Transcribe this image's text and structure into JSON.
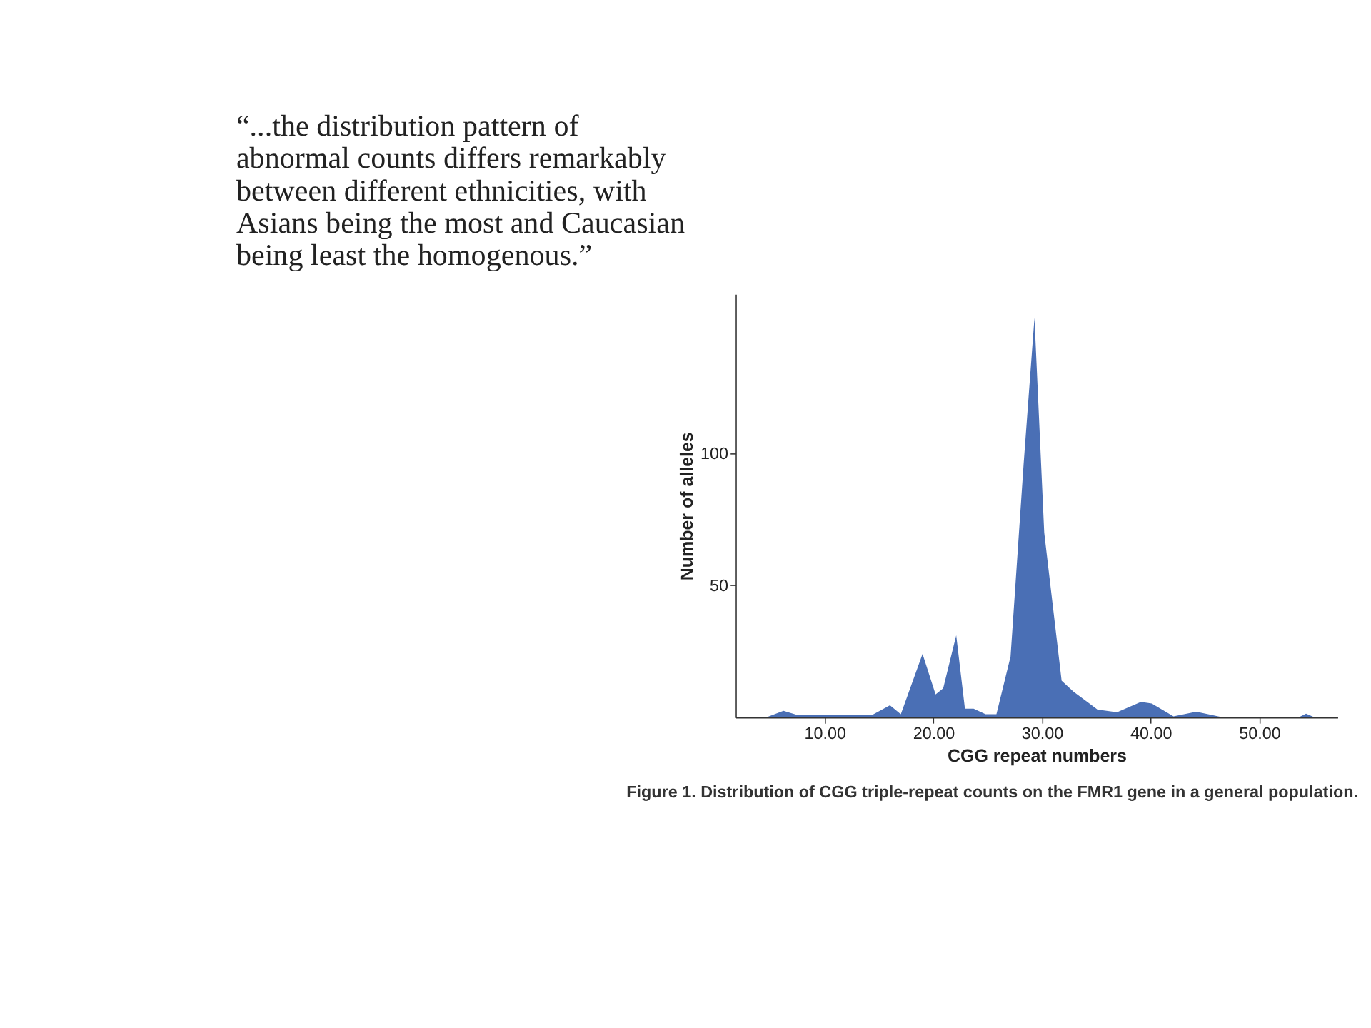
{
  "chart_data": {
    "type": "area",
    "title": "“...the distribution pattern of\nabnormal counts differs remarkably\nbetween different ethnicities, with\nAsians being the most and Caucasian\nbeing least the homogenous.”",
    "xlabel": "CGG repeat numbers",
    "ylabel": "Number of alleles",
    "x": [
      4.6,
      6.2,
      7.4,
      14.4,
      16.0,
      17.0,
      19.0,
      20.2,
      20.9,
      22.1,
      22.9,
      23.7,
      24.8,
      25.8,
      27.1,
      28.3,
      29.3,
      30.2,
      31.8,
      32.9,
      35.1,
      36.9,
      39.1,
      40.1,
      42.1,
      44.2,
      46.6,
      53.6,
      54.3,
      55.1
    ],
    "series": [
      {
        "color": "#4a6fb5",
        "values": [
          0,
          2.5,
          1,
          1,
          4.6,
          1.2,
          24,
          8.7,
          11,
          31,
          3.3,
          3.3,
          1.2,
          1.2,
          23,
          95.6,
          151,
          69.8,
          13.9,
          9.7,
          3,
          2,
          5.9,
          5.3,
          0.4,
          2.2,
          0.1,
          0,
          1.4,
          0
        ]
      }
    ],
    "xlim": [
      1.8,
      57.2
    ],
    "ylim": [
      0,
      160
    ],
    "xticks": [
      {
        "value": 10,
        "label": "10.00"
      },
      {
        "value": 20,
        "label": "20.00"
      },
      {
        "value": 30,
        "label": "30.00"
      },
      {
        "value": 40,
        "label": "40.00"
      },
      {
        "value": 50,
        "label": "50.00"
      }
    ],
    "yticks": [
      50,
      100
    ],
    "grid": false,
    "annotations": [
      "Figure 1. Distribution of CGG triple-repeat counts on the FMR1 gene in a general population."
    ]
  }
}
